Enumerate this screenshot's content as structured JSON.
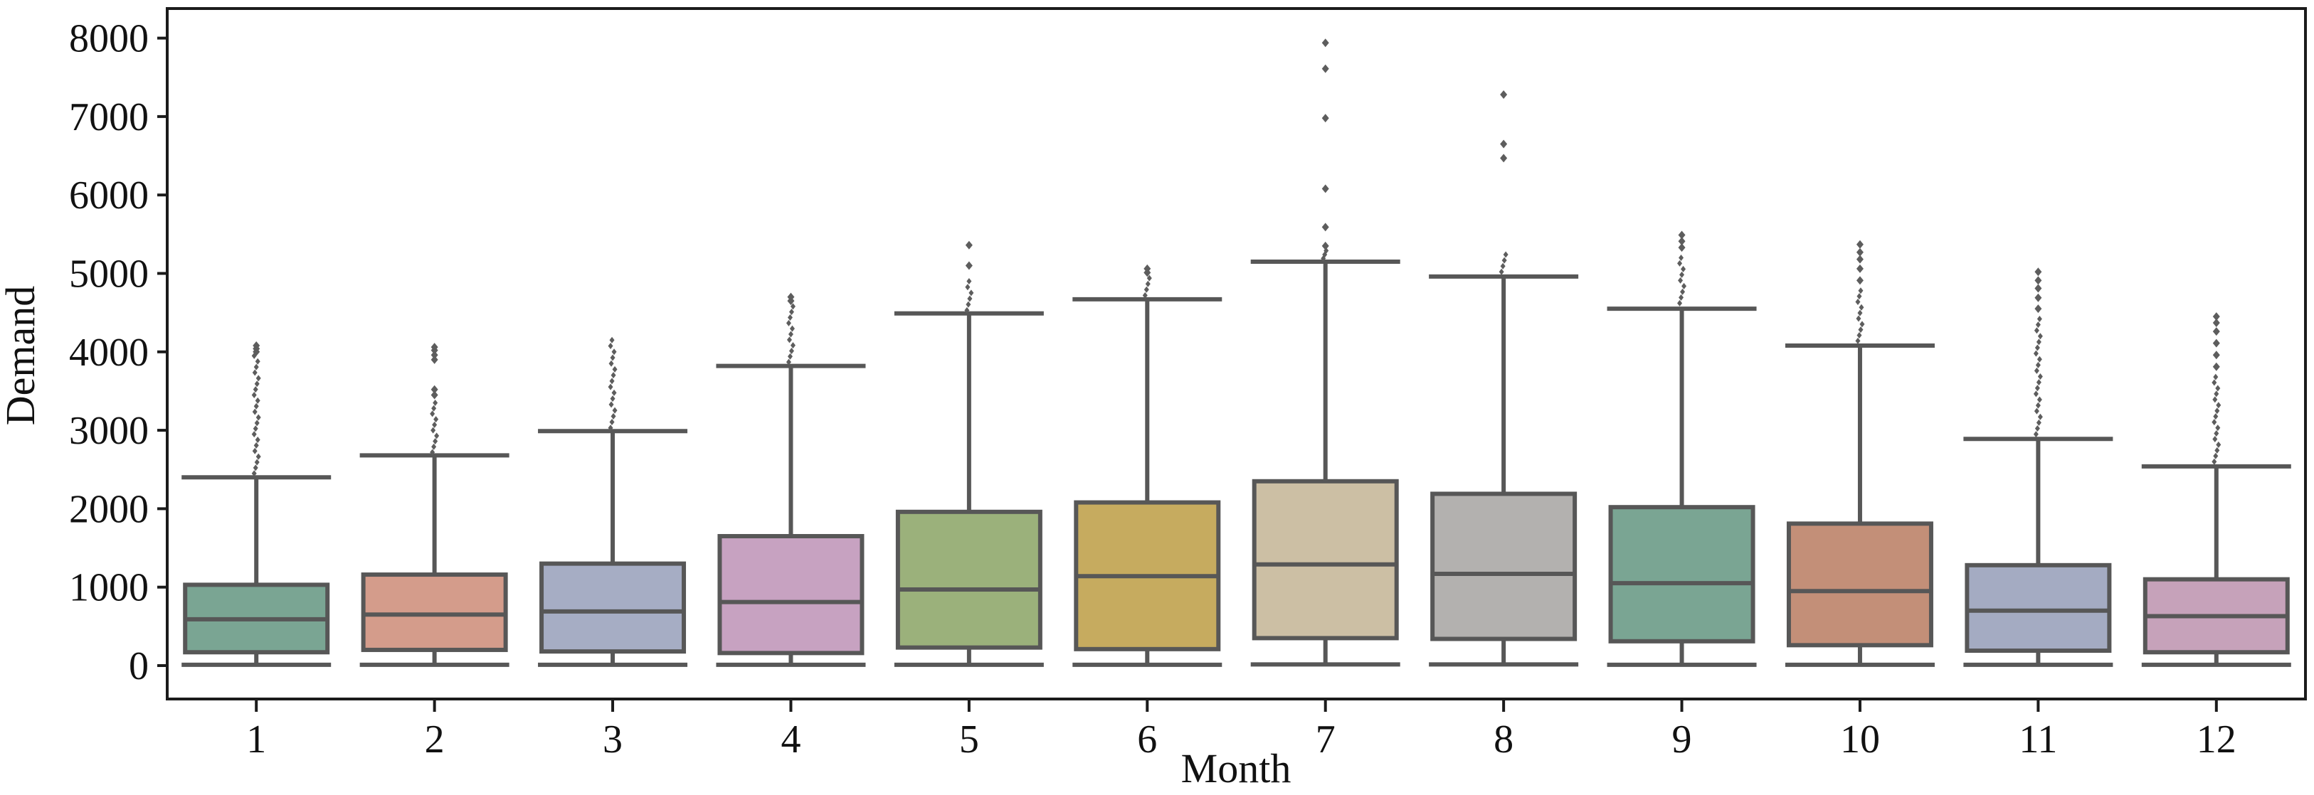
{
  "chart_data": {
    "type": "box",
    "title": "",
    "xlabel": "Month",
    "ylabel": "Demand",
    "categories": [
      "1",
      "2",
      "3",
      "4",
      "5",
      "6",
      "7",
      "8",
      "9",
      "10",
      "11",
      "12"
    ],
    "y_ticks": [
      0,
      1000,
      2000,
      3000,
      4000,
      5000,
      6000,
      7000,
      8000
    ],
    "ylim": [
      -430,
      8380
    ],
    "grid": false,
    "legend": "none",
    "background": "#ffffff",
    "axis_color": "#1b1b1b",
    "box_edge_color": "#575757",
    "outlier_color": "#5d5d5d",
    "text_color": "#111111",
    "series": [
      {
        "month": "1",
        "color": "#7aa593",
        "whisker_low": 10,
        "q1": 170,
        "median": 590,
        "q3": 1030,
        "whisker_high": 2400,
        "outlier_column": [
          2450,
          3950
        ],
        "outlier_points": [
          4000,
          4040,
          4080
        ]
      },
      {
        "month": "2",
        "color": "#d49c8b",
        "whisker_low": 10,
        "q1": 200,
        "median": 650,
        "q3": 1160,
        "whisker_high": 2680,
        "outlier_column": [
          2720,
          3350
        ],
        "outlier_points": [
          3450,
          3520,
          3900,
          3960,
          4020,
          4060
        ]
      },
      {
        "month": "3",
        "color": "#a6adc4",
        "whisker_low": 10,
        "q1": 180,
        "median": 690,
        "q3": 1300,
        "whisker_high": 2990,
        "outlier_column": [
          3030,
          4150
        ],
        "outlier_points": []
      },
      {
        "month": "4",
        "color": "#c7a2c1",
        "whisker_low": 10,
        "q1": 160,
        "median": 810,
        "q3": 1650,
        "whisker_high": 3820,
        "outlier_column": [
          3870,
          4580
        ],
        "outlier_points": [
          4650,
          4700
        ]
      },
      {
        "month": "5",
        "color": "#9bb17b",
        "whisker_low": 10,
        "q1": 230,
        "median": 970,
        "q3": 1960,
        "whisker_high": 4490,
        "outlier_column": [
          4530,
          4900
        ],
        "outlier_points": [
          5100,
          5360
        ]
      },
      {
        "month": "6",
        "color": "#c6ab5f",
        "whisker_low": 10,
        "q1": 210,
        "median": 1140,
        "q3": 2080,
        "whisker_high": 4670,
        "outlier_column": [
          4720,
          4940
        ],
        "outlier_points": [
          5010,
          5060
        ]
      },
      {
        "month": "7",
        "color": "#ccbfa4",
        "whisker_low": 15,
        "q1": 350,
        "median": 1290,
        "q3": 2350,
        "whisker_high": 5150,
        "outlier_column": [
          5190,
          5290
        ],
        "outlier_points": [
          5350,
          5590,
          6080,
          6980,
          7610,
          7940
        ]
      },
      {
        "month": "8",
        "color": "#b3b1af",
        "whisker_low": 15,
        "q1": 340,
        "median": 1170,
        "q3": 2190,
        "whisker_high": 4960,
        "outlier_column": [
          5020,
          5240
        ],
        "outlier_points": [
          6470,
          6650,
          7280
        ]
      },
      {
        "month": "9",
        "color": "#7aa593",
        "whisker_low": 10,
        "q1": 310,
        "median": 1050,
        "q3": 2020,
        "whisker_high": 4550,
        "outlier_column": [
          4620,
          5200
        ],
        "outlier_points": [
          5330,
          5410,
          5490
        ]
      },
      {
        "month": "10",
        "color": "#c38f78",
        "whisker_low": 10,
        "q1": 260,
        "median": 950,
        "q3": 1810,
        "whisker_high": 4080,
        "outlier_column": [
          4140,
          4780
        ],
        "outlier_points": [
          4910,
          5060,
          5180,
          5270,
          5370
        ]
      },
      {
        "month": "11",
        "color": "#a4abc2",
        "whisker_low": 10,
        "q1": 190,
        "median": 700,
        "q3": 1280,
        "whisker_high": 2890,
        "outlier_column": [
          2950,
          4420
        ],
        "outlier_points": [
          4550,
          4690,
          4810,
          4910,
          5020
        ]
      },
      {
        "month": "12",
        "color": "#c6a2ba",
        "whisker_low": 10,
        "q1": 170,
        "median": 630,
        "q3": 1100,
        "whisker_high": 2540,
        "outlier_column": [
          2600,
          3680
        ],
        "outlier_points": [
          3810,
          3960,
          4110,
          4260,
          4370,
          4450
        ]
      }
    ]
  }
}
